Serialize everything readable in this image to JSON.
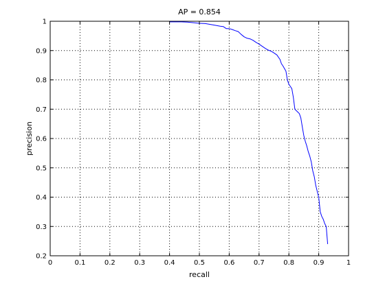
{
  "chart_data": {
    "type": "line",
    "title": "AP = 0.854",
    "xlabel": "recall",
    "ylabel": "precision",
    "xlim": [
      0,
      1
    ],
    "ylim": [
      0.2,
      1
    ],
    "x_ticks": [
      0,
      0.1,
      0.2,
      0.3,
      0.4,
      0.5,
      0.6,
      0.7,
      0.8,
      0.9,
      1
    ],
    "x_tick_labels": [
      "0",
      "0.1",
      "0.2",
      "0.3",
      "0.4",
      "0.5",
      "0.6",
      "0.7",
      "0.8",
      "0.9",
      "1"
    ],
    "y_ticks": [
      0.2,
      0.3,
      0.4,
      0.5,
      0.6,
      0.7,
      0.8,
      0.9,
      1
    ],
    "y_tick_labels": [
      "0.2",
      "0.3",
      "0.4",
      "0.5",
      "0.6",
      "0.7",
      "0.8",
      "0.9",
      "1"
    ],
    "grid": true,
    "grid_style": "dotted",
    "line_color": "#0000ff",
    "series": [
      {
        "x": [
          0.4,
          0.42,
          0.44,
          0.46,
          0.48,
          0.5,
          0.52,
          0.55,
          0.57,
          0.58,
          0.59,
          0.6,
          0.61,
          0.62,
          0.63,
          0.64,
          0.65,
          0.66,
          0.67,
          0.68,
          0.69,
          0.7,
          0.71,
          0.72,
          0.73,
          0.74,
          0.75,
          0.76,
          0.77,
          0.775,
          0.78,
          0.79,
          0.795,
          0.8,
          0.81,
          0.815,
          0.82,
          0.83,
          0.835,
          0.84,
          0.845,
          0.85,
          0.855,
          0.86,
          0.865,
          0.87,
          0.875,
          0.88,
          0.885,
          0.89,
          0.895,
          0.9,
          0.905,
          0.91,
          0.915,
          0.92,
          0.925,
          0.93
        ],
        "y": [
          0.998,
          0.998,
          0.998,
          0.997,
          0.995,
          0.993,
          0.992,
          0.987,
          0.983,
          0.982,
          0.975,
          0.975,
          0.972,
          0.968,
          0.965,
          0.955,
          0.947,
          0.942,
          0.94,
          0.935,
          0.928,
          0.922,
          0.915,
          0.908,
          0.902,
          0.898,
          0.892,
          0.885,
          0.87,
          0.855,
          0.848,
          0.83,
          0.8,
          0.785,
          0.77,
          0.74,
          0.7,
          0.69,
          0.685,
          0.67,
          0.64,
          0.61,
          0.59,
          0.575,
          0.555,
          0.54,
          0.52,
          0.49,
          0.47,
          0.44,
          0.42,
          0.4,
          0.35,
          0.335,
          0.325,
          0.31,
          0.3,
          0.24
        ]
      }
    ]
  }
}
